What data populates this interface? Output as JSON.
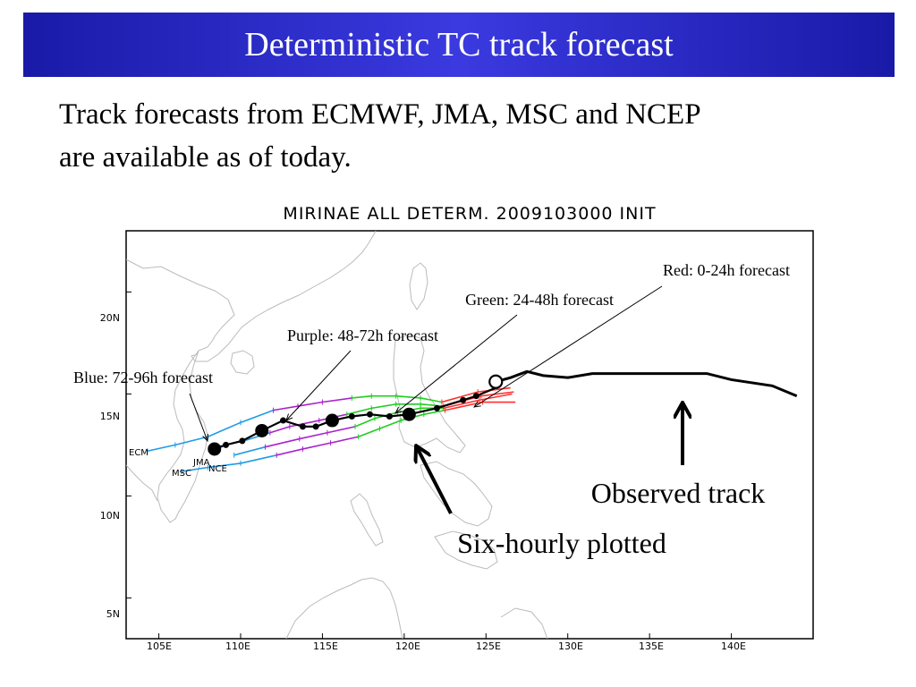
{
  "slide": {
    "title": "Deterministic TC track forecast",
    "subtitle_line1": "Track forecasts from ECMWF, JMA, MSC and NCEP",
    "subtitle_line2": "are available as of today."
  },
  "colors": {
    "title_bar": "#2828c8",
    "observed": "#000000",
    "red": "#ff3030",
    "green": "#22cc22",
    "purple": "#aa22cc",
    "blue": "#1e9be6",
    "coast": "#bbbbbb"
  },
  "chart_data": {
    "type": "line",
    "title": "MIRINAE    ALL  DETERM.   2009103000  INIT",
    "xlim": [
      103,
      145
    ],
    "ylim": [
      3,
      23
    ],
    "x_ticks": [
      105,
      110,
      115,
      120,
      125,
      130,
      135,
      140
    ],
    "x_tick_labels": [
      "105E",
      "110E",
      "115E",
      "120E",
      "125E",
      "130E",
      "135E",
      "140E"
    ],
    "y_ticks": [
      5,
      10,
      15,
      20
    ],
    "y_tick_labels": [
      "5N",
      "10N",
      "15N",
      "20N"
    ],
    "model_labels": [
      "ECM",
      "JMA",
      "MSC",
      "NCE"
    ],
    "observed_track": {
      "lon": [
        144,
        142.5,
        140,
        138.5,
        135,
        131.5,
        130,
        128.5,
        127.5,
        126.5,
        125.6
      ],
      "lat": [
        14.9,
        15.4,
        15.7,
        16.0,
        16.0,
        16.0,
        15.8,
        15.9,
        16.1,
        15.8,
        15.6
      ]
    },
    "forecast_points": {
      "lon": [
        125.6,
        124.4,
        123.6,
        122.0,
        120.3,
        119.1,
        117.9,
        116.8,
        115.6,
        114.6,
        113.8,
        112.6,
        111.3,
        110.1,
        109.1,
        108.4
      ],
      "lat": [
        15.3,
        14.9,
        14.7,
        14.3,
        14.0,
        13.9,
        14.0,
        13.9,
        13.7,
        13.4,
        13.4,
        13.7,
        13.2,
        12.7,
        12.5,
        12.3
      ],
      "large_markers": [
        125.6,
        120.3,
        115.6,
        111.3,
        108.4
      ]
    },
    "forecast_series": [
      {
        "model": "ECM",
        "segments": {
          "red": {
            "lon": [
              126.5,
              124.5,
              122.3
            ],
            "lat": [
              15.3,
              15.1,
              14.6
            ]
          },
          "green": {
            "lon": [
              122.3,
              121.0,
              119.5,
              118.0,
              116.8
            ],
            "lat": [
              14.6,
              14.8,
              14.9,
              14.9,
              14.8
            ]
          },
          "purple": {
            "lon": [
              116.8,
              115.0,
              113.5,
              112.0
            ],
            "lat": [
              14.8,
              14.6,
              14.4,
              14.2
            ]
          },
          "blue": {
            "lon": [
              112.0,
              110.0,
              108.0,
              106.0,
              104.3
            ],
            "lat": [
              14.2,
              13.6,
              12.9,
              12.5,
              12.2
            ]
          }
        }
      },
      {
        "model": "JMA",
        "segments": {
          "red": {
            "lon": [
              126.7,
              124.7,
              122.4
            ],
            "lat": [
              15.1,
              14.9,
              14.4
            ]
          },
          "green": {
            "lon": [
              122.4,
              121.0,
              119.5,
              118.0,
              116.5
            ],
            "lat": [
              14.4,
              14.5,
              14.5,
              14.3,
              14.0
            ]
          },
          "purple": {
            "lon": [
              116.5,
              114.8,
              113.0,
              111.8
            ],
            "lat": [
              14.0,
              13.7,
              13.4,
              13.1
            ]
          },
          "blue": {
            "lon": [
              111.8,
              110.2,
              108.5
            ],
            "lat": [
              13.1,
              12.7,
              12.4
            ]
          }
        }
      },
      {
        "model": "MSC",
        "segments": {
          "red": {
            "lon": [
              126.8,
              124.8,
              122.5
            ],
            "lat": [
              14.6,
              14.6,
              14.2
            ]
          },
          "green": {
            "lon": [
              122.5,
              121.2,
              119.8,
              118.5,
              117.2
            ],
            "lat": [
              14.2,
              14.0,
              13.7,
              13.3,
              12.9
            ]
          },
          "purple": {
            "lon": [
              117.2,
              115.5,
              113.8,
              112.2
            ],
            "lat": [
              12.9,
              12.6,
              12.3,
              12.0
            ]
          },
          "blue": {
            "lon": [
              112.2,
              110.0,
              108.0,
              106.4
            ],
            "lat": [
              12.0,
              11.6,
              11.4,
              11.2
            ]
          }
        }
      },
      {
        "model": "NCE",
        "segments": {
          "red": {
            "lon": [
              126.6,
              124.6,
              122.4
            ],
            "lat": [
              15.0,
              14.7,
              14.3
            ]
          },
          "green": {
            "lon": [
              122.4,
              121.0,
              119.6,
              118.2,
              117.0
            ],
            "lat": [
              14.3,
              14.3,
              14.1,
              13.8,
              13.4
            ]
          },
          "purple": {
            "lon": [
              117.0,
              115.3,
              113.6,
              111.5
            ],
            "lat": [
              13.4,
              13.1,
              12.8,
              12.4
            ]
          },
          "blue": {
            "lon": [
              111.5,
              109.6
            ],
            "lat": [
              12.4,
              12.0
            ]
          }
        }
      }
    ]
  },
  "annotations": {
    "red": "Red: 0-24h forecast",
    "green": "Green: 24-48h forecast",
    "purple": "Purple: 48-72h forecast",
    "blue": "Blue: 72-96h forecast",
    "observed": "Observed track",
    "six_hourly": "Six-hourly plotted"
  }
}
